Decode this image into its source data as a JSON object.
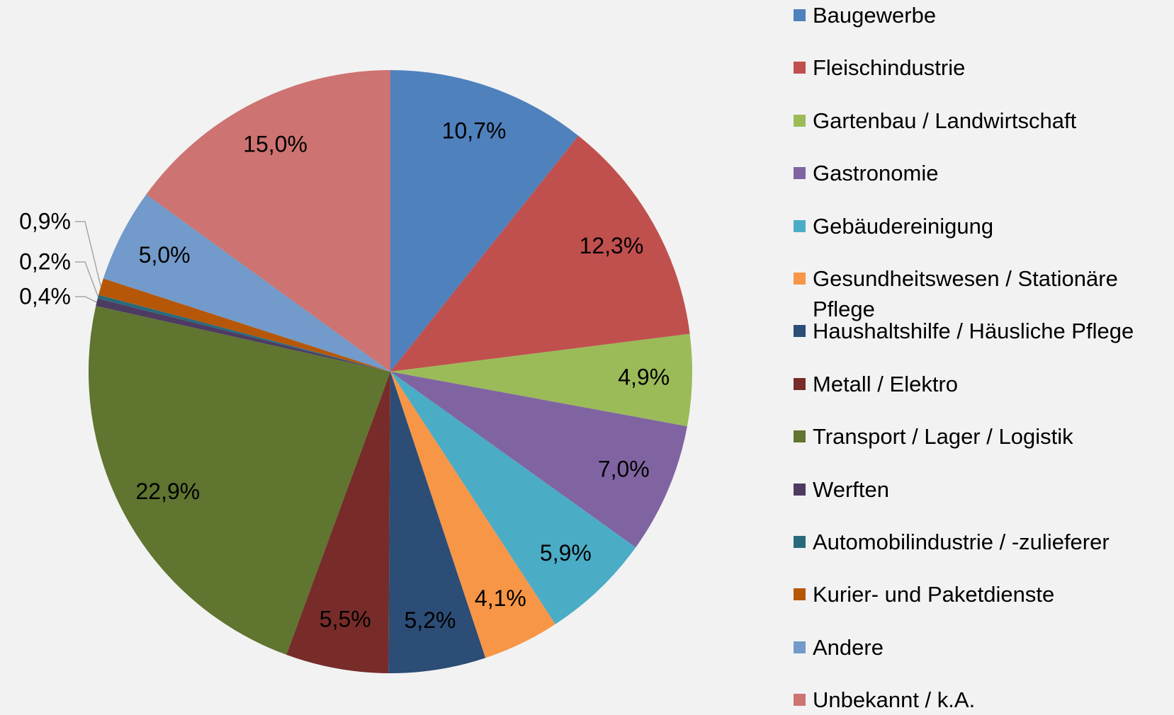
{
  "chart_data": {
    "type": "pie",
    "categories": [
      "Baugewerbe",
      "Fleischindustrie",
      "Gartenbau / Landwirtschaft",
      "Gastronomie",
      "Gebäudereinigung",
      "Gesundheitswesen / Stationäre Pflege",
      "Haushaltshilfe / Häusliche Pflege",
      "Metall / Elektro",
      "Transport / Lager / Logistik",
      "Werften",
      "Automobilindustrie / -zulieferer",
      "Kurier- und Paketdienste",
      "Andere",
      "Unbekannt / k.A."
    ],
    "values": [
      10.7,
      12.3,
      4.9,
      7.0,
      5.9,
      4.1,
      5.2,
      5.5,
      22.9,
      0.4,
      0.2,
      0.9,
      5.0,
      15.0
    ],
    "value_labels": [
      "10,7%",
      "12,3%",
      "4,9%",
      "7,0%",
      "5,9%",
      "4,1%",
      "5,2%",
      "5,5%",
      "22,9%",
      "0,4%",
      "0,2%",
      "0,9%",
      "5,0%",
      "15,0%"
    ],
    "colors": [
      "#4f81bd",
      "#c0504d",
      "#9bbb59",
      "#8064a2",
      "#4bacc6",
      "#f79646",
      "#2c4d75",
      "#772c2a",
      "#5f7530",
      "#4d3b62",
      "#276a7c",
      "#b65708",
      "#729aca",
      "#cd7371"
    ],
    "legend": "right"
  }
}
